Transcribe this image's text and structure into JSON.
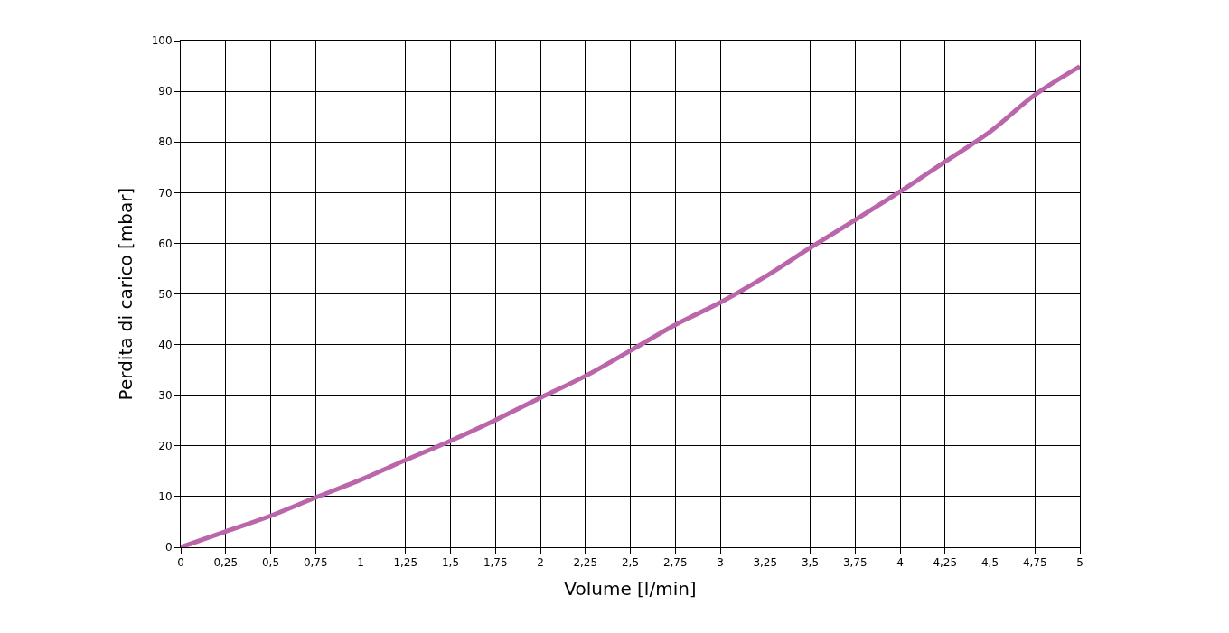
{
  "chart_data": {
    "type": "line",
    "xlabel": "Volume [l/min]",
    "ylabel": "Perdita di carico [mbar]",
    "x": [
      0,
      0.25,
      0.5,
      0.75,
      1,
      1.25,
      1.5,
      1.75,
      2,
      2.25,
      2.5,
      2.75,
      3,
      3.25,
      3.5,
      3.75,
      4,
      4.25,
      4.5,
      4.75,
      5
    ],
    "series": [
      {
        "color": "#bb66aa",
        "values": [
          0,
          3.1,
          6.2,
          9.8,
          13.3,
          17.2,
          21,
          25.1,
          29.5,
          33.8,
          38.8,
          43.9,
          48.3,
          53.4,
          59.1,
          64.6,
          70.2,
          76.1,
          82,
          89.3,
          94.9
        ]
      }
    ],
    "xlim": [
      0,
      5
    ],
    "xticks": [
      0,
      {
        "value": 0.25,
        "label": "0,25"
      },
      {
        "value": 0.5,
        "label": "0,5"
      },
      {
        "value": 0.75,
        "label": "0,75"
      },
      1,
      {
        "value": 1.25,
        "label": "1,25"
      },
      {
        "value": 1.5,
        "label": "1,5"
      },
      {
        "value": 1.75,
        "label": "1,75"
      },
      2,
      {
        "value": 2.25,
        "label": "2,25"
      },
      {
        "value": 2.5,
        "label": "2,5"
      },
      {
        "value": 2.75,
        "label": "2,75"
      },
      3,
      {
        "value": 3.25,
        "label": "3,25"
      },
      {
        "value": 3.5,
        "label": "3,5"
      },
      {
        "value": 3.75,
        "label": "3,75"
      },
      4,
      {
        "value": 4.25,
        "label": "4,25"
      },
      {
        "value": 4.5,
        "label": "4,5"
      },
      {
        "value": 4.75,
        "label": "4,75"
      },
      5
    ],
    "ylim": [
      0,
      100
    ],
    "yticks": [
      0,
      10,
      20,
      30,
      40,
      50,
      60,
      70,
      80,
      90,
      100
    ],
    "grid": true,
    "legend": false,
    "marker": "none",
    "line_style": "solid"
  }
}
